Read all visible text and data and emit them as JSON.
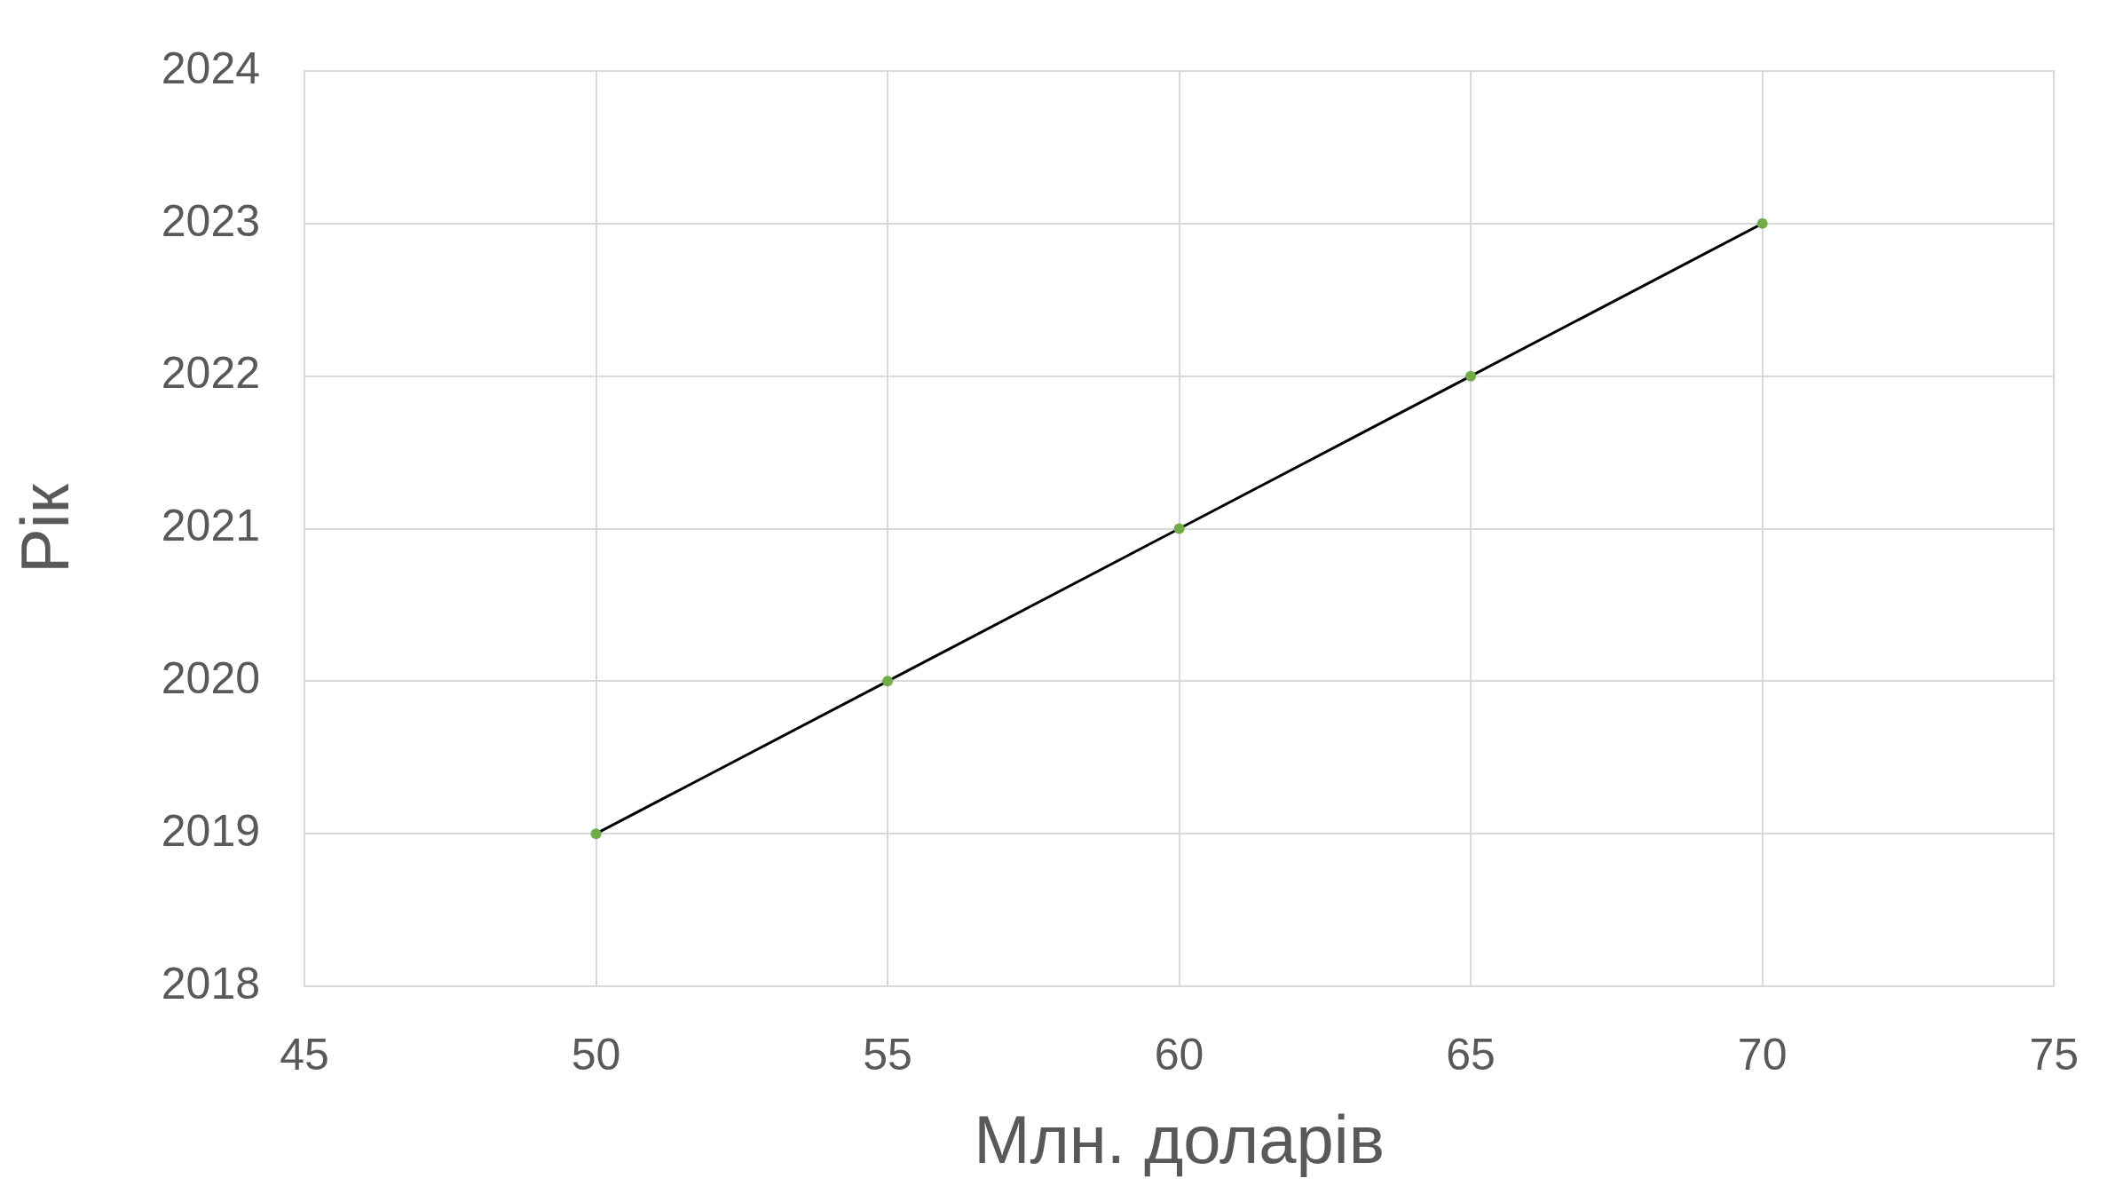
{
  "chart_data": {
    "type": "line",
    "xlabel": "Млн. доларів",
    "ylabel": "Рік",
    "series": [
      {
        "color": "#000000",
        "marker": "none",
        "x": [
          50,
          55,
          60,
          65,
          70
        ],
        "values": [
          2019,
          2020,
          2021,
          2022,
          2023
        ]
      },
      {
        "type": "scatter",
        "color": "#70ad47",
        "marker": "circle",
        "x": [
          50,
          55,
          60,
          65,
          70
        ],
        "values": [
          2019,
          2020,
          2021,
          2022,
          2023
        ]
      }
    ],
    "xlim": [
      45,
      75
    ],
    "xticks": [
      45,
      50,
      55,
      60,
      65,
      70,
      75
    ],
    "ylim": [
      2018,
      2024
    ],
    "yticks": [
      2018,
      2019,
      2020,
      2021,
      2022,
      2023,
      2024
    ],
    "grid": true,
    "legend": false
  }
}
